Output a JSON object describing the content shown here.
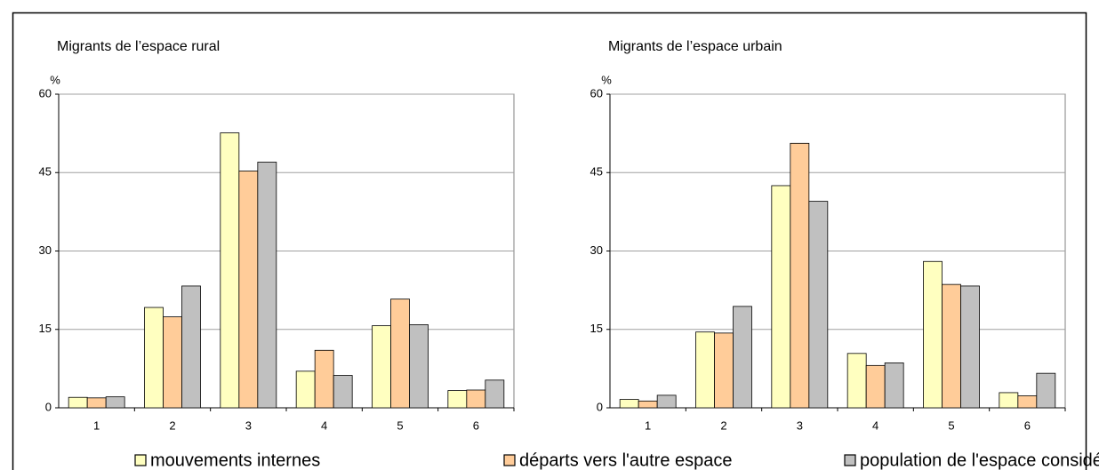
{
  "chart_data": [
    {
      "type": "bar",
      "title": "Migrants de l’espace rural",
      "ylabel": "%",
      "categories": [
        "1",
        "2",
        "3",
        "4",
        "5",
        "6"
      ],
      "series": [
        {
          "name": "mouvements internes",
          "color": "#ffffc0",
          "values": [
            2.0,
            19.2,
            52.6,
            7.0,
            15.7,
            3.3
          ]
        },
        {
          "name": "départs vers l'autre espace",
          "color": "#ffcc99",
          "values": [
            1.9,
            17.4,
            45.3,
            11.0,
            20.8,
            3.4
          ]
        },
        {
          "name": "population de l'espace considéré",
          "color": "#c0c0c0",
          "values": [
            2.1,
            23.3,
            47.0,
            6.2,
            15.9,
            5.3
          ]
        }
      ],
      "ylim": [
        0,
        60
      ],
      "yticks": [
        0,
        15,
        30,
        45,
        60
      ],
      "grid": true
    },
    {
      "type": "bar",
      "title": "Migrants de l’espace urbain",
      "ylabel": "%",
      "categories": [
        "1",
        "2",
        "3",
        "4",
        "5",
        "6"
      ],
      "series": [
        {
          "color": "#ffffc0",
          "values": [
            1.6,
            14.5,
            42.5,
            10.4,
            28.0,
            2.9
          ]
        },
        {
          "color": "#ffcc99",
          "values": [
            1.3,
            14.3,
            50.6,
            8.1,
            23.6,
            2.3
          ]
        },
        {
          "color": "#c0c0c0",
          "values": [
            2.4,
            19.4,
            39.5,
            8.6,
            23.3,
            6.6
          ]
        }
      ],
      "ylim": [
        0,
        60
      ],
      "yticks": [
        0,
        15,
        30,
        45,
        60
      ],
      "grid": true
    }
  ]
}
